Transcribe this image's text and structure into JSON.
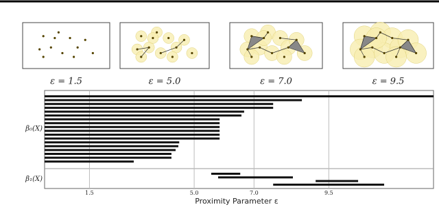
{
  "chart_data": {
    "type": "barcode",
    "panels": [
      "ε = 1.5",
      "ε = 5.0",
      "ε = 7.0",
      "ε = 9.5"
    ],
    "xlabel": "Proximity Parameter ε",
    "xlim": [
      0,
      13
    ],
    "xticks": [
      1.5,
      {
        "value": 5,
        "label": "5.0"
      },
      {
        "value": 7,
        "label": "7.0"
      },
      9.5
    ],
    "grid": true,
    "color": "#111111",
    "series": [
      {
        "name": "β₀(X)",
        "bars": [
          [
            0,
            13
          ],
          [
            0,
            8.6
          ],
          [
            0,
            7.64
          ],
          [
            0,
            7.64
          ],
          [
            0,
            6.67
          ],
          [
            0,
            6.58
          ],
          [
            0,
            5.85
          ],
          [
            0,
            5.85
          ],
          [
            0,
            5.85
          ],
          [
            0,
            5.85
          ],
          [
            0,
            5.85
          ],
          [
            0,
            5.85
          ],
          [
            0,
            4.5
          ],
          [
            0,
            4.47
          ],
          [
            0,
            4.38
          ],
          [
            0,
            4.24
          ],
          [
            0,
            4.24
          ],
          [
            0,
            2.98
          ]
        ]
      },
      {
        "name": "β₁(X)",
        "bars": [
          [
            5.57,
            6.54
          ],
          [
            5.8,
            8.3
          ],
          [
            9.06,
            10.48
          ],
          [
            7.64,
            11.35
          ]
        ]
      }
    ]
  }
}
